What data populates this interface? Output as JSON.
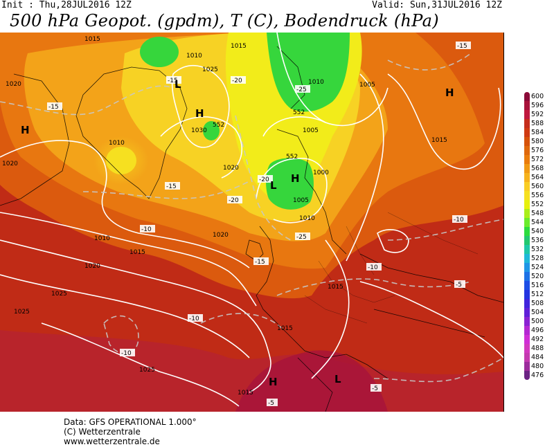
{
  "header": {
    "init": "Init : Thu,28JUL2016 12Z",
    "valid": "Valid: Sun,31JUL2016 12Z",
    "title": "500 hPa Geopot. (gpdm), T (C), Bodendruck (hPa)"
  },
  "legend": {
    "values": [
      "600",
      "596",
      "592",
      "588",
      "584",
      "580",
      "576",
      "572",
      "568",
      "564",
      "560",
      "556",
      "552",
      "548",
      "544",
      "540",
      "536",
      "532",
      "528",
      "524",
      "520",
      "516",
      "512",
      "508",
      "504",
      "500",
      "496",
      "492",
      "488",
      "484",
      "480",
      "476"
    ],
    "colors": [
      "#8b0a38",
      "#a8123a",
      "#c0183e",
      "#c52d1c",
      "#cf3a12",
      "#d6520a",
      "#df680c",
      "#ea7c0c",
      "#f09a14",
      "#f6b21c",
      "#f9cd24",
      "#f6e020",
      "#e6f00e",
      "#aaee1a",
      "#6bec2c",
      "#2cdc3e",
      "#22c870",
      "#1ec8a8",
      "#1eb8d8",
      "#1e96e6",
      "#1c72e6",
      "#1c4ee6",
      "#2434e0",
      "#4024dc",
      "#6020d8",
      "#8a22d2",
      "#b428d2",
      "#d02ed6",
      "#d238c0",
      "#c43ab0",
      "#9c2c9c",
      "#6c2484"
    ]
  },
  "footer": {
    "line1": "Data: GFS OPERATIONAL 1.000°",
    "line2": "(C) Wetterzentrale",
    "line3": "www.wetterzentrale.de"
  },
  "map": {
    "pressure_labels": [
      "1015",
      "1020",
      "1025",
      "1010",
      "1030",
      "1020",
      "1015",
      "1010",
      "1005",
      "1000",
      "1005",
      "1010",
      "1020",
      "1010",
      "1015",
      "1020",
      "1025",
      "1025",
      "1015",
      "1015",
      "1025",
      "1015",
      "1005",
      "1020",
      "1015",
      "1010"
    ],
    "temp_labels": [
      "-15",
      "-15",
      "-20",
      "-25",
      "-20",
      "-15",
      "-10",
      "-20",
      "-20",
      "-25",
      "-15",
      "-10",
      "-10",
      "-10",
      "-10",
      "-5",
      "-5",
      "-5",
      "-10",
      "-15",
      "-10"
    ],
    "centers": [
      "H",
      "L",
      "H",
      "L",
      "H",
      "H",
      "L",
      "H",
      "L"
    ],
    "contour_552": "552"
  }
}
